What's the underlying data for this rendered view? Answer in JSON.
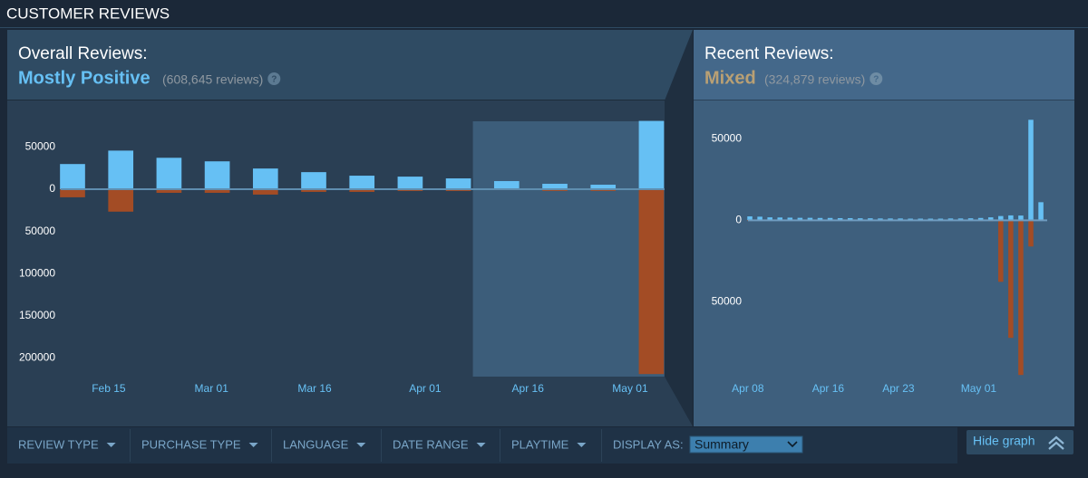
{
  "title": "CUSTOMER REVIEWS",
  "overall": {
    "heading": "Overall Reviews:",
    "rating": "Mostly Positive",
    "count": "(608,645 reviews)"
  },
  "recent": {
    "heading": "Recent Reviews:",
    "rating": "Mixed",
    "count": "(324,879 reviews)"
  },
  "chart_data": [
    {
      "type": "bar",
      "categories": [
        null,
        null,
        null,
        null,
        null,
        null,
        null,
        null,
        null,
        null,
        null,
        null,
        null
      ],
      "series": [
        {
          "color": "#66c0f4",
          "values": [
            29800,
            45700,
            37200,
            33000,
            24500,
            20200,
            16000,
            14900,
            12800,
            9600,
            6400,
            5300,
            80900
          ]
        },
        {
          "color": "#a34c25",
          "values": [
            -9600,
            -26600,
            -4300,
            -4300,
            -6400,
            -3200,
            -3200,
            -2100,
            -2100,
            -1100,
            -2100,
            -2100,
            -219000
          ]
        }
      ],
      "xlim": [
        -0.5,
        12.5
      ],
      "xticks": [
        {
          "value": 0.75,
          "label": "Feb 15"
        },
        {
          "value": 2.88,
          "label": "Mar 01"
        },
        {
          "value": 5.02,
          "label": "Mar 16"
        },
        {
          "value": 7.31,
          "label": "Apr 01"
        },
        {
          "value": 9.44,
          "label": "Apr 16"
        },
        {
          "value": 11.56,
          "label": "May 01"
        }
      ],
      "ylim": [
        -222000,
        104000
      ],
      "yticks": [
        50000,
        0,
        {
          "value": -50000,
          "label": "50000"
        },
        {
          "value": -100000,
          "label": "100000"
        },
        {
          "value": -150000,
          "label": "150000"
        },
        {
          "value": -200000,
          "label": "200000"
        }
      ],
      "highlight_range": [
        8.3,
        12.27
      ]
    },
    {
      "type": "bar",
      "categories": [
        null,
        null,
        null,
        null,
        null,
        null,
        null,
        null,
        null,
        null,
        null,
        null,
        null,
        null,
        null,
        null,
        null,
        null,
        null,
        null,
        null,
        null,
        null,
        null,
        null,
        null,
        null,
        null,
        null,
        null
      ],
      "series": [
        {
          "color": "#66c0f4",
          "values": [
            2400,
            2200,
            1800,
            1700,
            1600,
            1500,
            1500,
            1400,
            1400,
            1300,
            1300,
            1200,
            1200,
            1100,
            1100,
            1100,
            1000,
            1000,
            1000,
            1000,
            1100,
            1100,
            1200,
            1400,
            1800,
            2600,
            3000,
            2900,
            61700,
            11100
          ]
        },
        {
          "color": "#a34c25",
          "values": [
            -400,
            -300,
            -300,
            -300,
            -300,
            -300,
            -300,
            -300,
            -300,
            -300,
            -300,
            -300,
            -300,
            -300,
            -300,
            -300,
            -300,
            -300,
            -300,
            -300,
            -300,
            -300,
            -400,
            -500,
            -600,
            -37800,
            -72200,
            -95000,
            -16100,
            0
          ]
        }
      ],
      "xlim": [
        -0.5,
        29.5
      ],
      "xticks": [
        {
          "value": -0.2,
          "label": "Apr 08"
        },
        {
          "value": 7.8,
          "label": "Apr 16"
        },
        {
          "value": 14.8,
          "label": "Apr 23"
        },
        {
          "value": 22.8,
          "label": "May 01"
        }
      ],
      "ylim": [
        -96000,
        73000
      ],
      "yticks": [
        50000,
        0,
        {
          "value": -50000,
          "label": "50000"
        }
      ]
    }
  ],
  "filters": [
    "REVIEW TYPE",
    "PURCHASE TYPE",
    "LANGUAGE",
    "DATE RANGE",
    "PLAYTIME"
  ],
  "display_as": {
    "label": "DISPLAY AS:",
    "selected": "Summary"
  },
  "hide_graph": "Hide graph"
}
